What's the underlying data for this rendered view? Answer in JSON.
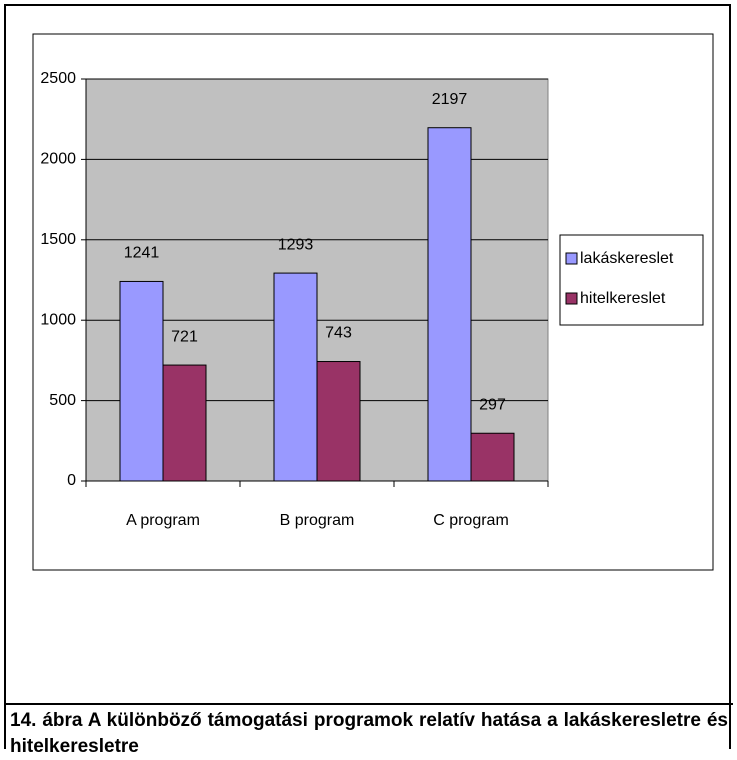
{
  "chart_data": {
    "type": "bar",
    "categories": [
      "A program",
      "B program",
      "C program"
    ],
    "series": [
      {
        "name": "lakáskereslet",
        "color": "#9999ff",
        "values": [
          1241,
          1293,
          2197
        ]
      },
      {
        "name": "hitelkereslet",
        "color": "#993366",
        "values": [
          721,
          743,
          297
        ]
      }
    ],
    "ylim": [
      0,
      2500
    ],
    "yticks": [
      0,
      500,
      1000,
      1500,
      2000,
      2500
    ],
    "grid": true,
    "legend": "right",
    "plot_background": "#c0c0c0"
  },
  "caption": "14. ábra A különböző támogatási programok relatív hatása a lakáskeresletre és hitelkeresletre"
}
